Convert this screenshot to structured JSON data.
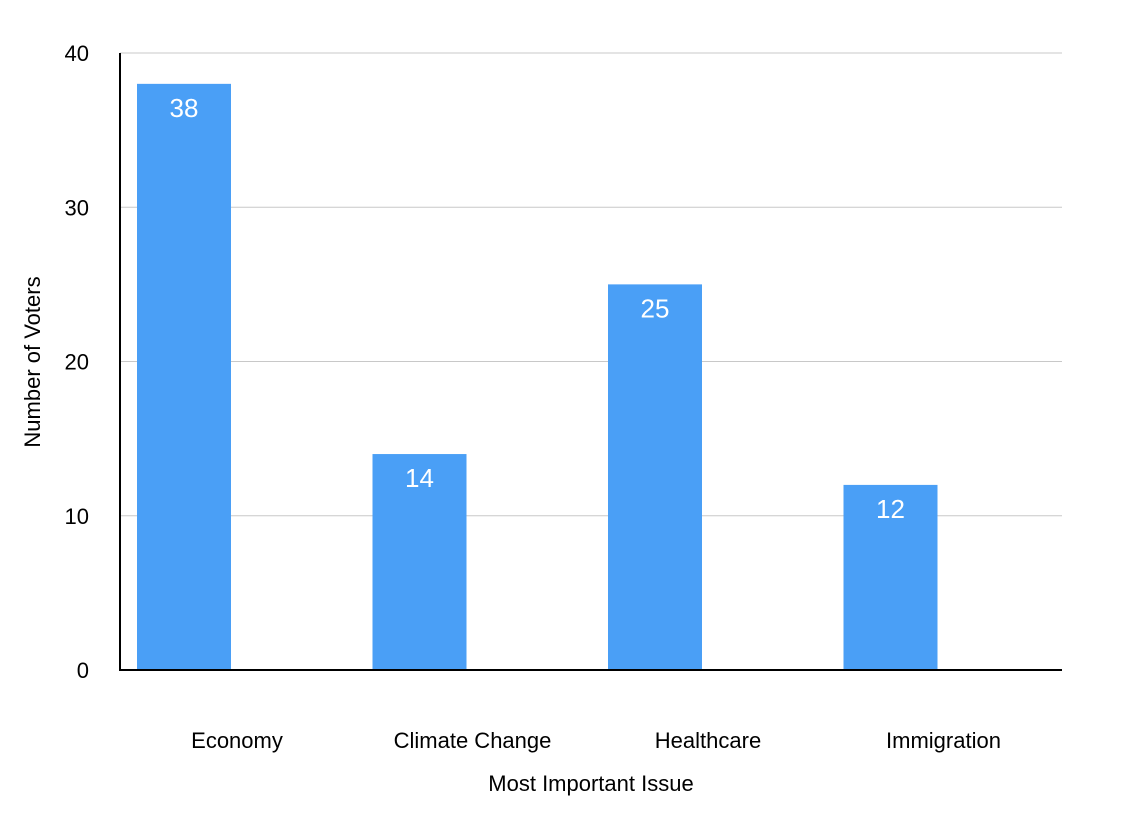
{
  "chart_data": {
    "type": "bar",
    "title": "",
    "xlabel": "Most Important Issue",
    "ylabel": "Number of Voters",
    "categories": [
      "Economy",
      "Climate Change",
      "Healthcare",
      "Immigration"
    ],
    "values": [
      38,
      14,
      25,
      12
    ],
    "ylim": [
      0,
      40
    ],
    "yticks": [
      0,
      10,
      20,
      30,
      40
    ],
    "grid": true,
    "legend": "none",
    "data_labels": "inside-top",
    "colors": {
      "bar": "#4A9FF6",
      "grid": "#C8C8C8",
      "axis": "#000000",
      "data_label": "#FFFFFF"
    }
  }
}
